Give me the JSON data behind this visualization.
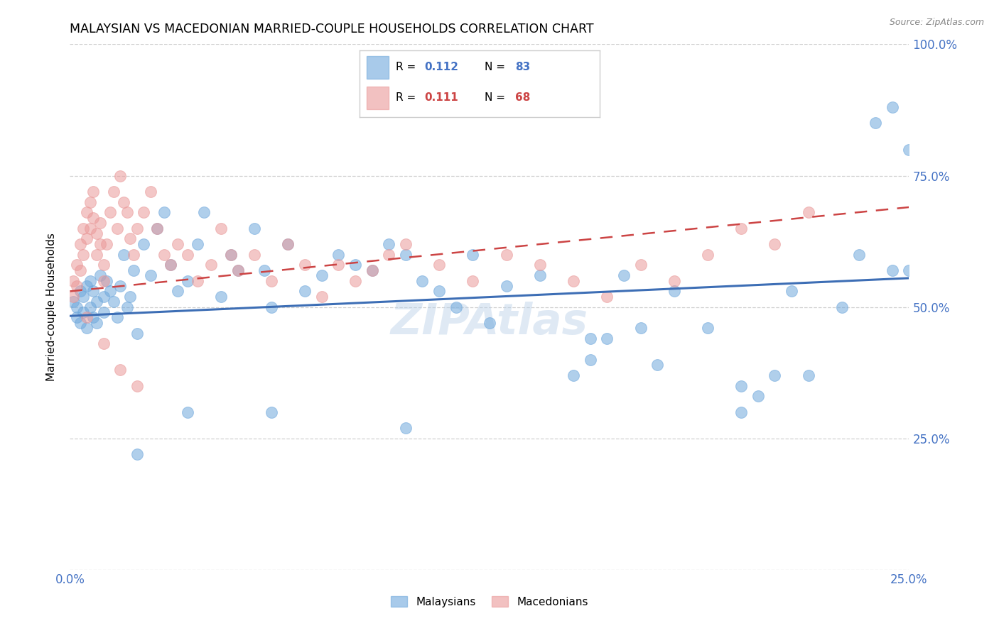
{
  "title": "MALAYSIAN VS MACEDONIAN MARRIED-COUPLE HOUSEHOLDS CORRELATION CHART",
  "source": "Source: ZipAtlas.com",
  "ylabel": "Married-couple Households",
  "xmin": 0.0,
  "xmax": 0.25,
  "ymin": 0.0,
  "ymax": 1.0,
  "yticks": [
    0.0,
    0.25,
    0.5,
    0.75,
    1.0
  ],
  "ytick_labels": [
    "",
    "25.0%",
    "50.0%",
    "75.0%",
    "100.0%"
  ],
  "xticks": [
    0.0,
    0.05,
    0.1,
    0.15,
    0.2,
    0.25
  ],
  "xtick_labels": [
    "0.0%",
    "",
    "",
    "",
    "",
    "25.0%"
  ],
  "legend_label_blue": "Malaysians",
  "legend_label_pink": "Macedonians",
  "blue_color": "#6fa8dc",
  "pink_color": "#ea9999",
  "blue_line_color": "#3d6eb5",
  "pink_line_color": "#cc4444",
  "axis_color": "#4472c4",
  "grid_color": "#cccccc",
  "watermark_color": "#b8cfe8",
  "blue_trend": [
    0.483,
    0.555
  ],
  "pink_trend": [
    0.53,
    0.69
  ],
  "blue_scatter_x": [
    0.001,
    0.002,
    0.002,
    0.003,
    0.003,
    0.004,
    0.004,
    0.005,
    0.005,
    0.006,
    0.006,
    0.007,
    0.007,
    0.008,
    0.008,
    0.009,
    0.01,
    0.01,
    0.011,
    0.012,
    0.013,
    0.014,
    0.015,
    0.016,
    0.017,
    0.018,
    0.019,
    0.02,
    0.022,
    0.024,
    0.026,
    0.028,
    0.03,
    0.032,
    0.035,
    0.038,
    0.04,
    0.045,
    0.048,
    0.05,
    0.055,
    0.058,
    0.06,
    0.065,
    0.07,
    0.075,
    0.08,
    0.085,
    0.09,
    0.095,
    0.1,
    0.105,
    0.11,
    0.115,
    0.12,
    0.125,
    0.13,
    0.14,
    0.15,
    0.155,
    0.16,
    0.165,
    0.17,
    0.175,
    0.18,
    0.19,
    0.2,
    0.205,
    0.21,
    0.215,
    0.22,
    0.23,
    0.235,
    0.24,
    0.245,
    0.25,
    0.06,
    0.1,
    0.155,
    0.2,
    0.245,
    0.25,
    0.02,
    0.035
  ],
  "blue_scatter_y": [
    0.51,
    0.5,
    0.48,
    0.53,
    0.47,
    0.52,
    0.49,
    0.54,
    0.46,
    0.55,
    0.5,
    0.48,
    0.53,
    0.51,
    0.47,
    0.56,
    0.52,
    0.49,
    0.55,
    0.53,
    0.51,
    0.48,
    0.54,
    0.6,
    0.5,
    0.52,
    0.57,
    0.45,
    0.62,
    0.56,
    0.65,
    0.68,
    0.58,
    0.53,
    0.55,
    0.62,
    0.68,
    0.52,
    0.6,
    0.57,
    0.65,
    0.57,
    0.5,
    0.62,
    0.53,
    0.56,
    0.6,
    0.58,
    0.57,
    0.62,
    0.6,
    0.55,
    0.53,
    0.5,
    0.6,
    0.47,
    0.54,
    0.56,
    0.37,
    0.4,
    0.44,
    0.56,
    0.46,
    0.39,
    0.53,
    0.46,
    0.3,
    0.33,
    0.37,
    0.53,
    0.37,
    0.5,
    0.6,
    0.85,
    0.57,
    0.8,
    0.3,
    0.27,
    0.44,
    0.35,
    0.88,
    0.57,
    0.22,
    0.3
  ],
  "pink_scatter_x": [
    0.001,
    0.001,
    0.002,
    0.002,
    0.003,
    0.003,
    0.004,
    0.004,
    0.005,
    0.005,
    0.006,
    0.006,
    0.007,
    0.007,
    0.008,
    0.008,
    0.009,
    0.009,
    0.01,
    0.01,
    0.011,
    0.012,
    0.013,
    0.014,
    0.015,
    0.016,
    0.017,
    0.018,
    0.019,
    0.02,
    0.022,
    0.024,
    0.026,
    0.028,
    0.03,
    0.032,
    0.035,
    0.038,
    0.042,
    0.045,
    0.048,
    0.05,
    0.055,
    0.06,
    0.065,
    0.07,
    0.075,
    0.08,
    0.085,
    0.09,
    0.095,
    0.1,
    0.11,
    0.12,
    0.13,
    0.14,
    0.15,
    0.16,
    0.17,
    0.18,
    0.19,
    0.2,
    0.21,
    0.22,
    0.005,
    0.01,
    0.015,
    0.02
  ],
  "pink_scatter_y": [
    0.55,
    0.52,
    0.58,
    0.54,
    0.62,
    0.57,
    0.65,
    0.6,
    0.68,
    0.63,
    0.7,
    0.65,
    0.72,
    0.67,
    0.64,
    0.6,
    0.66,
    0.62,
    0.58,
    0.55,
    0.62,
    0.68,
    0.72,
    0.65,
    0.75,
    0.7,
    0.68,
    0.63,
    0.6,
    0.65,
    0.68,
    0.72,
    0.65,
    0.6,
    0.58,
    0.62,
    0.6,
    0.55,
    0.58,
    0.65,
    0.6,
    0.57,
    0.6,
    0.55,
    0.62,
    0.58,
    0.52,
    0.58,
    0.55,
    0.57,
    0.6,
    0.62,
    0.58,
    0.55,
    0.6,
    0.58,
    0.55,
    0.52,
    0.58,
    0.55,
    0.6,
    0.65,
    0.62,
    0.68,
    0.48,
    0.43,
    0.38,
    0.35
  ]
}
